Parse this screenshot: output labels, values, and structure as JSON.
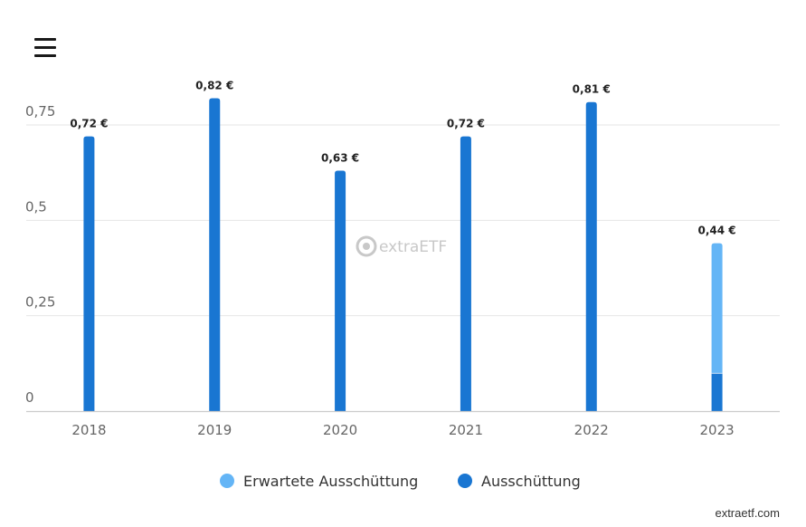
{
  "menu": {
    "icon": "hamburger-menu-icon"
  },
  "watermark": {
    "text": "extraETF",
    "icon": "extraetf-logo-icon"
  },
  "credit": "extraetf.com",
  "colors": {
    "paid": "#1976d2",
    "expected": "#64b5f6",
    "grid": "#e6e6e6",
    "axis": "#cccccc",
    "axis_text": "#666666",
    "label_text": "#222222",
    "watermark": "#c8c8c8"
  },
  "chart_data": {
    "type": "bar",
    "stacked": true,
    "categories": [
      "2018",
      "2019",
      "2020",
      "2021",
      "2022",
      "2023"
    ],
    "series": [
      {
        "name": "Ausschüttung",
        "color": "#1976d2",
        "values": [
          0.72,
          0.82,
          0.63,
          0.72,
          0.81,
          0.1
        ]
      },
      {
        "name": "Erwartete Ausschüttung",
        "color": "#64b5f6",
        "values": [
          0,
          0,
          0,
          0,
          0,
          0.34
        ]
      }
    ],
    "data_labels": [
      "0,72 €",
      "0,82 €",
      "0,63 €",
      "0,72 €",
      "0,81 €",
      "0,44 €"
    ],
    "y_ticks": [
      "0",
      "0,25",
      "0,5",
      "0,75"
    ],
    "y_tick_values": [
      0,
      0.25,
      0.5,
      0.75
    ],
    "ylim": [
      0,
      0.75
    ],
    "grid": true,
    "legend": {
      "placement": "bottom-center",
      "entries": [
        {
          "label": "Erwartete Ausschüttung",
          "color": "#64b5f6"
        },
        {
          "label": "Ausschüttung",
          "color": "#1976d2"
        }
      ]
    }
  }
}
